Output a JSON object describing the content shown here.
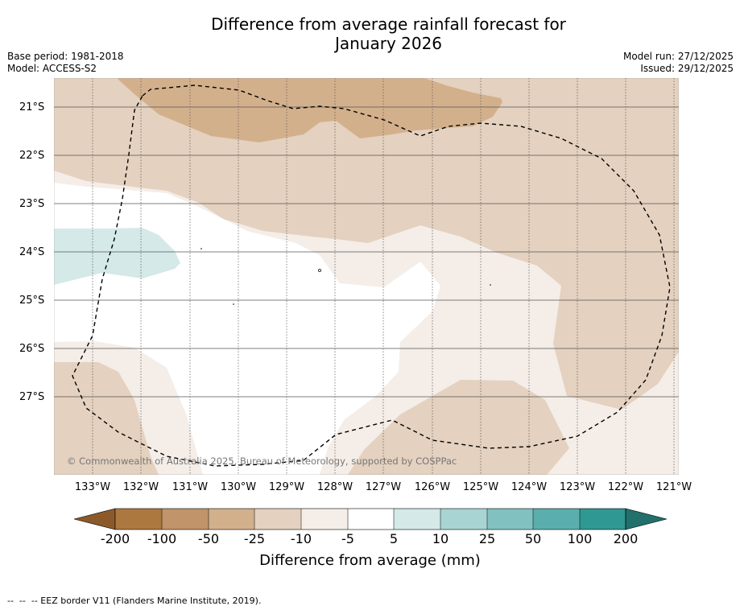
{
  "title_line1": "Difference from average rainfall forecast for",
  "title_line2": "January 2026",
  "base_period": "Base period: 1981-2018",
  "model": "Model: ACCESS-S2",
  "model_run": "Model run: 27/12/2025",
  "issued": "Issued: 29/12/2025",
  "copyright": "© Commonwealth of Australia 2025, Bureau of Meteorology, supported by COSPPac",
  "latitudes": [
    "21°S",
    "22°S",
    "23°S",
    "24°S",
    "25°S",
    "26°S",
    "27°S"
  ],
  "longitudes": [
    "133°W",
    "132°W",
    "131°W",
    "130°W",
    "129°W",
    "128°W",
    "127°W",
    "126°W",
    "125°W",
    "124°W",
    "123°W",
    "122°W",
    "121°W"
  ],
  "colorbar": {
    "ticks": [
      "-200",
      "-100",
      "-50",
      "-25",
      "-10",
      "-5",
      "5",
      "10",
      "25",
      "50",
      "100",
      "200"
    ],
    "colors": [
      "#8c5a2a",
      "#ad7840",
      "#c19469",
      "#d3b08c",
      "#e4d1bf",
      "#f4ede8",
      "#ffffff",
      "#d4e9e8",
      "#a8d4d3",
      "#81c2c0",
      "#5baeae",
      "#2f9893",
      "#22706c"
    ],
    "label": "Difference from average (mm)"
  },
  "legend_text": "--  --  -- EEZ border V11 (Flanders Marine Institute, 2019)."
}
